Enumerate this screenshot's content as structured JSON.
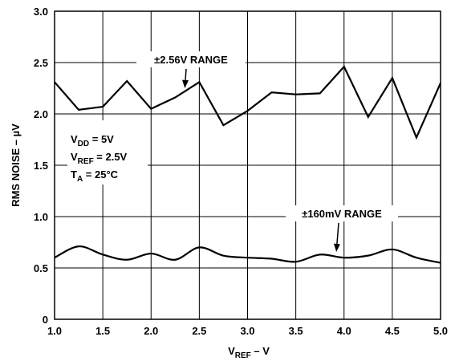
{
  "chart_data": {
    "type": "line",
    "xlabel": "V",
    "xlabel_sub": "REF",
    "xlabel_suffix": " – V",
    "ylabel": "RMS NOISE – µV",
    "xlim": [
      1.0,
      5.0
    ],
    "ylim": [
      0,
      3.0
    ],
    "xticks": [
      "1.0",
      "1.5",
      "2.0",
      "2.5",
      "3.0",
      "3.5",
      "4.0",
      "4.5",
      "5.0"
    ],
    "yticks": [
      "0",
      "0.5",
      "1.0",
      "1.5",
      "2.0",
      "2.5",
      "3.0"
    ],
    "grid": true,
    "series": [
      {
        "name": "±2.56V RANGE",
        "x": [
          1.0,
          1.25,
          1.5,
          1.75,
          2.0,
          2.25,
          2.5,
          2.75,
          3.0,
          3.25,
          3.5,
          3.75,
          4.0,
          4.25,
          4.5,
          4.75,
          5.0
        ],
        "values": [
          2.31,
          2.04,
          2.07,
          2.32,
          2.05,
          2.16,
          2.31,
          1.89,
          2.03,
          2.21,
          2.19,
          2.2,
          2.46,
          1.97,
          2.35,
          1.77,
          2.3
        ],
        "smooth": false
      },
      {
        "name": "±160mV RANGE",
        "x": [
          1.0,
          1.25,
          1.5,
          1.75,
          2.0,
          2.25,
          2.5,
          2.75,
          3.0,
          3.25,
          3.5,
          3.75,
          4.0,
          4.25,
          4.5,
          4.75,
          5.0
        ],
        "values": [
          0.6,
          0.71,
          0.63,
          0.58,
          0.64,
          0.58,
          0.7,
          0.62,
          0.6,
          0.59,
          0.56,
          0.63,
          0.6,
          0.62,
          0.68,
          0.6,
          0.55
        ],
        "smooth": true
      }
    ],
    "annotations": {
      "conditions": [
        {
          "base": "V",
          "sub": "DD",
          "rest": " = 5V"
        },
        {
          "base": "V",
          "sub": "REF",
          "rest": " = 2.5V"
        },
        {
          "base": "T",
          "sub": "A",
          "rest": " = 25°C"
        }
      ],
      "series_labels": [
        {
          "series": 0,
          "text": "±2.56V RANGE",
          "arrow_to_x": 2.35
        },
        {
          "series": 1,
          "text": "±160mV RANGE",
          "arrow_to_x": 3.92
        }
      ]
    }
  }
}
